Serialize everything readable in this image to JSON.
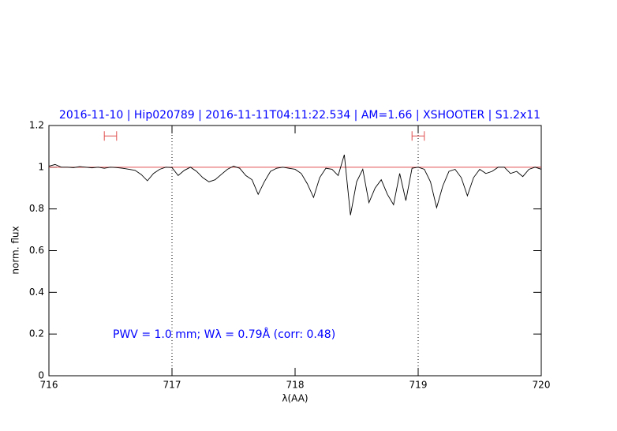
{
  "chart_data": {
    "type": "line",
    "title": "2016-11-10 | Hip020789 | 2016-11-11T04:11:22.534 | AM=1.66 | XSHOOTER | S1.2x11",
    "xlabel": "λ(AA)",
    "ylabel": "norm. flux",
    "annotation": "PWV = 1.0 mm; Wλ = 0.79Å (corr: 0.48)",
    "xlim": [
      716,
      720
    ],
    "xticks": [
      716,
      717,
      718,
      719,
      720
    ],
    "ylim": [
      0,
      1.2
    ],
    "yticks": [
      0,
      0.2,
      0.4,
      0.6,
      0.8,
      1,
      1.2
    ],
    "color": "#000000",
    "title_color": "#0000ff",
    "reference_line": 1,
    "reference_color": "#e05050",
    "vlines": [
      717,
      719
    ],
    "ranges": [
      [
        716.45,
        716.55,
        1.15
      ],
      [
        718.95,
        719.05,
        1.15
      ]
    ],
    "x": [
      716.0,
      716.05,
      716.1,
      716.15,
      716.2,
      716.25,
      716.3,
      716.35,
      716.4,
      716.45,
      716.5,
      716.55,
      716.6,
      716.65,
      716.7,
      716.75,
      716.8,
      716.85,
      716.9,
      716.95,
      717.0,
      717.05,
      717.1,
      717.15,
      717.2,
      717.25,
      717.3,
      717.35,
      717.4,
      717.45,
      717.5,
      717.55,
      717.6,
      717.65,
      717.7,
      717.75,
      717.8,
      717.85,
      717.9,
      717.95,
      718.0,
      718.05,
      718.1,
      718.15,
      718.2,
      718.25,
      718.3,
      718.35,
      718.4,
      718.45,
      718.5,
      718.55,
      718.6,
      718.65,
      718.7,
      718.75,
      718.8,
      718.85,
      718.9,
      718.95,
      719.0,
      719.05,
      719.1,
      719.15,
      719.2,
      719.25,
      719.3,
      719.35,
      719.4,
      719.45,
      719.5,
      719.55,
      719.6,
      719.65,
      719.7,
      719.75,
      719.8,
      719.85,
      719.9,
      719.95,
      720.0
    ],
    "values": [
      1.005,
      1.013,
      1.0,
      1.0,
      0.998,
      1.003,
      1.0,
      0.997,
      1.0,
      0.995,
      1.0,
      0.998,
      0.995,
      0.99,
      0.985,
      0.965,
      0.935,
      0.97,
      0.99,
      1.0,
      0.998,
      0.96,
      0.985,
      1.0,
      0.98,
      0.95,
      0.93,
      0.94,
      0.965,
      0.99,
      1.005,
      0.995,
      0.96,
      0.94,
      0.87,
      0.93,
      0.98,
      0.995,
      1.0,
      0.995,
      0.99,
      0.97,
      0.92,
      0.855,
      0.95,
      0.995,
      0.99,
      0.96,
      1.06,
      0.77,
      0.93,
      0.99,
      0.83,
      0.9,
      0.94,
      0.87,
      0.82,
      0.97,
      0.84,
      0.995,
      1.0,
      0.99,
      0.93,
      0.806,
      0.91,
      0.98,
      0.99,
      0.95,
      0.863,
      0.95,
      0.99,
      0.97,
      0.98,
      1.0,
      1.0,
      0.97,
      0.98,
      0.955,
      0.99,
      1.0,
      0.99
    ]
  }
}
